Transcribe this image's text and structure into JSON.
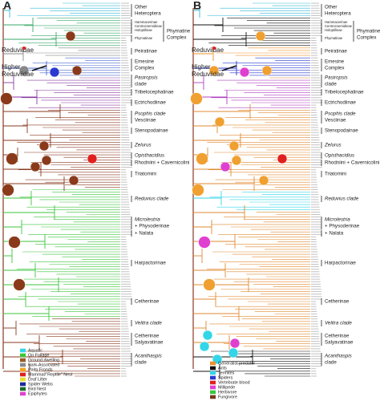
{
  "panels": [
    {
      "label": "A",
      "side_labels": [
        "Reduviidae",
        "Higher",
        "Reduviidae"
      ],
      "clade_labels": [
        "Other",
        "Heteroptera",
        "Hammacerinae",
        "Centrocnemidinae",
        "Holoptilinae",
        "Phymatinae",
        "Phymatine",
        "Complex",
        "Peiratinae",
        "Emesine",
        "Complex",
        "Pasiropsis",
        "clade",
        "Tribelocephalinae",
        "Ectrichodiinae",
        "Psophis clade",
        "Vesciinae",
        "Stenopodainae",
        "Zelurus",
        "Opisthacidius",
        "Rhodniini + Cavernicolini",
        "Triatomini",
        "Reduvius clade",
        "Microlestria",
        "+ Physoderinae",
        "+ Nalata",
        "Harpactorinae",
        "Cetherinae",
        "Velitra clade",
        "Cetherinae",
        "Salyavatinae",
        "Acanthaspis",
        "clade"
      ],
      "legend": [
        {
          "name": "Aquatic",
          "color": "#33d6e8"
        },
        {
          "name": "On Foliage",
          "color": "#3cc63c"
        },
        {
          "name": "Ground dwelling",
          "color": "#9b5a2a"
        },
        {
          "name": "Bark-Associated",
          "color": "#8a8a8a"
        },
        {
          "name": "Palm Fronds",
          "color": "#f5a020"
        },
        {
          "name": "Mammal/\"Reptile\" Nest",
          "color": "#e02020"
        },
        {
          "name": "Leaf Litter",
          "color": "#e8e030"
        },
        {
          "name": "Spider Webs",
          "color": "#1a2a9a"
        },
        {
          "name": "Bird Nest",
          "color": "#1d6b2a"
        },
        {
          "name": "Epiphytes",
          "color": "#e040d0"
        }
      ]
    },
    {
      "label": "B",
      "side_labels": [
        "Reduviidae",
        "Higher",
        "Reduviidae"
      ],
      "clade_labels": [
        "Other",
        "Heteroptera",
        "Hammacerinae",
        "Centrocnemidinae",
        "Holoptilinae",
        "Phymatinae",
        "Phymatine",
        "Complex",
        "Peiratinae",
        "Emesine",
        "Complex",
        "Pasiropsis",
        "clade",
        "Tribelocephalinae",
        "Ectrichodiinae",
        "Psophis clade",
        "Vesciinae",
        "Stenopodainae",
        "Zelurus",
        "Opisthacidius",
        "Rhodniini + Cavernicolini",
        "Triatomini",
        "Reduvius clade",
        "Microlestria",
        "+ Physoderinae",
        "+ Nalata",
        "Harpactorinae",
        "Cetherinae",
        "Velitra clade",
        "Cetherinae",
        "Salyavatinae",
        "Acanthaspis",
        "clade"
      ],
      "legend": [
        {
          "name": "Generalist predator",
          "color": "#f0902a"
        },
        {
          "name": "Ants",
          "color": "#111111"
        },
        {
          "name": "Termites",
          "color": "#33d6e8"
        },
        {
          "name": "Spiders",
          "color": "#2a3ad0"
        },
        {
          "name": "Vertebrate blood",
          "color": "#e02020"
        },
        {
          "name": "Millipede",
          "color": "#e040d0"
        },
        {
          "name": "Herbivore",
          "color": "#3cc63c"
        },
        {
          "name": "Fungivore",
          "color": "#7a3a1a"
        }
      ]
    }
  ]
}
